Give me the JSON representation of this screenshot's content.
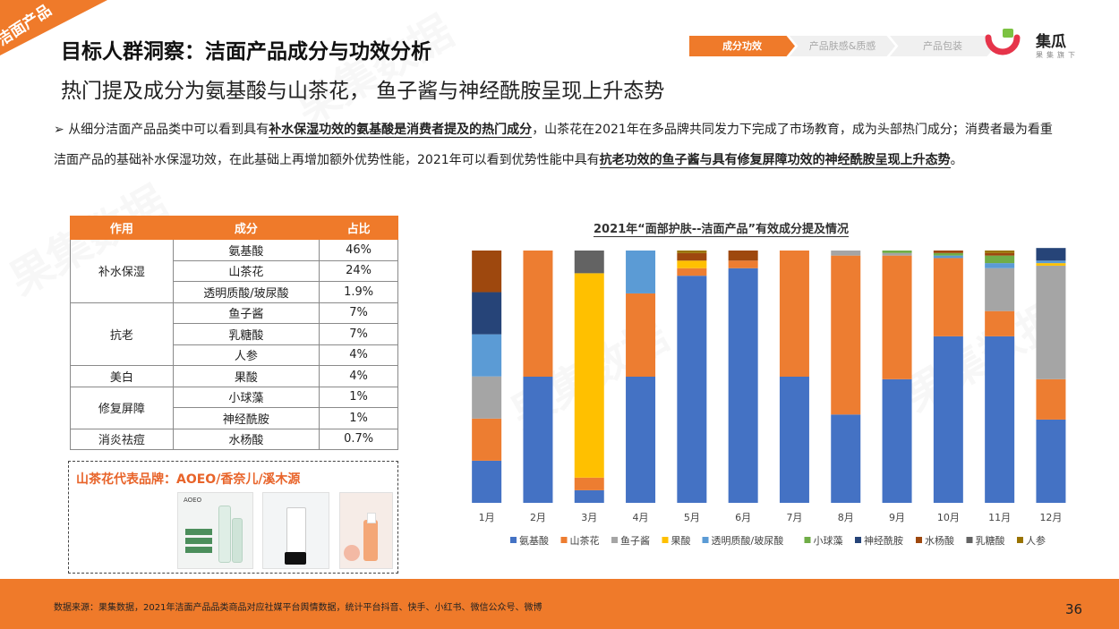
{
  "corner_tag": "洁面产品",
  "title": "目标人群洞察：洁面产品成分与功效分析",
  "subtitle": "热门提及成分为氨基酸与山茶花， 鱼子酱与神经酰胺呈现上升态势",
  "steps": [
    "成分功效",
    "产品肤感&质感",
    "产品包装"
  ],
  "logo": {
    "name": "集瓜",
    "sub": "果集旗下"
  },
  "intro": {
    "p1": "从细分洁面产品品类中可以看到具有",
    "e1": "补水保湿功效的氨基酸是消费者提及的热门成分",
    "p2": "，山茶花在2021年在多品牌共同发力下完成了市场教育，成为头部热门成分；消费者最为看重洁面产品的基础补水保湿功效，在此基础上再增加额外优势性能，2021年可以看到优势性能中具有",
    "e2": "抗老功效的鱼子酱与具有修复屏障功效的神经酰胺呈现上升态势",
    "p3": "。"
  },
  "table": {
    "headers": [
      "作用",
      "成分",
      "占比"
    ],
    "groups": [
      {
        "effect": "补水保湿",
        "rows": [
          [
            "氨基酸",
            "46%"
          ],
          [
            "山茶花",
            "24%"
          ],
          [
            "透明质酸/玻尿酸",
            "1.9%"
          ]
        ]
      },
      {
        "effect": "抗老",
        "rows": [
          [
            "鱼子酱",
            "7%"
          ],
          [
            "乳糖酸",
            "7%"
          ],
          [
            "人参",
            "4%"
          ]
        ]
      },
      {
        "effect": "美白",
        "rows": [
          [
            "果酸",
            "4%"
          ]
        ]
      },
      {
        "effect": "修复屏障",
        "rows": [
          [
            "小球藻",
            "1%"
          ],
          [
            "神经酰胺",
            "1%"
          ]
        ]
      },
      {
        "effect": "消炎祛痘",
        "rows": [
          [
            "水杨酸",
            "0.7%"
          ]
        ]
      }
    ]
  },
  "brand_box": {
    "title": "山茶花代表品牌：AOEO/香奈儿/溪木源",
    "product_label": "AOEO"
  },
  "chart_title": "2021年“面部护肤--洁面产品”有效成分提及情况",
  "chart_data": {
    "type": "bar",
    "stacked": true,
    "categories": [
      "1月",
      "2月",
      "3月",
      "4月",
      "5月",
      "6月",
      "7月",
      "8月",
      "9月",
      "10月",
      "11月",
      "12月"
    ],
    "ylim": [
      0,
      100
    ],
    "series": [
      {
        "name": "氨基酸",
        "color": "#4472c4",
        "values": [
          16.7,
          50,
          5,
          50,
          90,
          93,
          50,
          35,
          49,
          66,
          66,
          33
        ]
      },
      {
        "name": "山茶花",
        "color": "#ed7d31",
        "values": [
          16.7,
          50,
          5,
          33,
          3,
          3,
          50,
          63,
          49,
          31,
          10,
          16
        ]
      },
      {
        "name": "鱼子酱",
        "color": "#a5a5a5",
        "values": [
          16.7,
          0,
          0,
          0,
          0,
          0,
          0,
          2,
          1,
          0,
          17,
          45
        ]
      },
      {
        "name": "果酸",
        "color": "#ffc000",
        "values": [
          0,
          0,
          81,
          0,
          3,
          0,
          0,
          0,
          0,
          0,
          0,
          1
        ]
      },
      {
        "name": "透明质酸/玻尿酸",
        "color": "#5b9bd5",
        "values": [
          16.7,
          0,
          0,
          17,
          0,
          0,
          0,
          0,
          0,
          1,
          2,
          1
        ]
      },
      {
        "name": "小球藻",
        "color": "#70ad47",
        "values": [
          0,
          0,
          0,
          0,
          0,
          0,
          0,
          0,
          1,
          1,
          3,
          0
        ]
      },
      {
        "name": "神经酰胺",
        "color": "#264478",
        "values": [
          16.7,
          0,
          0,
          0,
          0,
          0,
          0,
          0,
          0,
          0,
          0,
          5
        ]
      },
      {
        "name": "水杨酸",
        "color": "#9e480e",
        "values": [
          16.5,
          0,
          0,
          0,
          3,
          4,
          0,
          0,
          0,
          1,
          1,
          0
        ]
      },
      {
        "name": "乳糖酸",
        "color": "#636363",
        "values": [
          0,
          0,
          9,
          0,
          0,
          0,
          0,
          0,
          0,
          0,
          0,
          0
        ]
      },
      {
        "name": "人参",
        "color": "#997300",
        "values": [
          0,
          0,
          0,
          0,
          1,
          0,
          0,
          0,
          0,
          0,
          1,
          0
        ]
      }
    ]
  },
  "footer": {
    "source": "数据来源：果集数据，2021年洁面产品品类商品对应社媒平台舆情数据，统计平台抖音、快手、小红书、微信公众号、微博",
    "page": "36"
  }
}
